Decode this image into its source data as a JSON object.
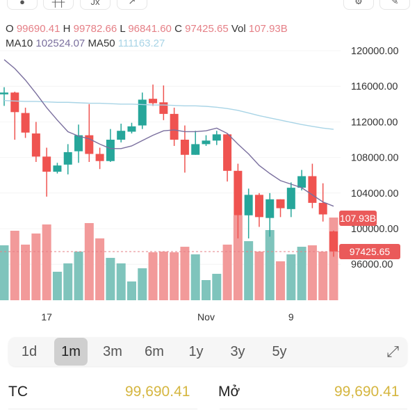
{
  "toolbar": {
    "icons": [
      "shape-icon",
      "indicator-icon",
      "fx-icon",
      "trend-icon",
      "settings-icon",
      "tool-icon"
    ],
    "fx_label": "Jx"
  },
  "ohlc": {
    "o_label": "O",
    "o": "99690.41",
    "h_label": "H",
    "h": "99782.66",
    "l_label": "L",
    "l": "96841.60",
    "c_label": "C",
    "c": "97425.65",
    "vol_label": "Vol",
    "vol": "107.93B"
  },
  "ma": {
    "ma10_label": "MA10",
    "ma10": "102524.07",
    "ma50_label": "MA50",
    "ma50": "111163.27"
  },
  "colors": {
    "up": "#26a69a",
    "down": "#ef5350",
    "vol_up": "#7fc4bc",
    "vol_down": "#f29a9a",
    "ma10": "#7a6f9e",
    "ma50": "#a8d4e6",
    "value": "#d5b640"
  },
  "chart_data": {
    "type": "candlestick",
    "y_axis": {
      "ticks": [
        "120000.00",
        "116000.00",
        "112000.00",
        "108000.00",
        "104000.00",
        "100000.00",
        "96000.00"
      ],
      "tick_values": [
        120000,
        116000,
        112000,
        108000,
        104000,
        100000,
        96000
      ]
    },
    "x_labels": [
      {
        "label": "17",
        "index": 4
      },
      {
        "label": "Nov",
        "index": 19
      },
      {
        "label": "9",
        "index": 27
      }
    ],
    "current_price_label": "97425.65",
    "current_volume_label": "107.93B",
    "current_price": 97425.65,
    "current_volume": 107.93,
    "candles": [
      [
        115100,
        115900,
        113800,
        115300
      ],
      [
        115300,
        115400,
        110000,
        113100
      ],
      [
        113000,
        113600,
        110200,
        110800
      ],
      [
        110700,
        112000,
        107500,
        108100
      ],
      [
        108100,
        109100,
        103600,
        106400
      ],
      [
        106400,
        107400,
        106200,
        107100
      ],
      [
        107200,
        109500,
        106100,
        108600
      ],
      [
        108700,
        111700,
        107400,
        110500
      ],
      [
        110500,
        114000,
        107500,
        108400
      ],
      [
        108400,
        109100,
        106700,
        107600
      ],
      [
        107600,
        111200,
        107500,
        110000
      ],
      [
        110000,
        111800,
        109700,
        111000
      ],
      [
        110900,
        111900,
        110700,
        111500
      ],
      [
        111600,
        115300,
        111200,
        114500
      ],
      [
        114600,
        116200,
        113800,
        114100
      ],
      [
        114200,
        116100,
        112200,
        112900
      ],
      [
        112900,
        113600,
        109300,
        110000
      ],
      [
        110000,
        111600,
        106300,
        108300
      ],
      [
        108300,
        111000,
        108300,
        109500
      ],
      [
        109500,
        110500,
        109300,
        109900
      ],
      [
        109900,
        111000,
        109400,
        110600
      ],
      [
        110600,
        110700,
        105300,
        106500
      ],
      [
        106500,
        107300,
        98900,
        101500
      ],
      [
        101500,
        104500,
        98900,
        103800
      ],
      [
        103800,
        104000,
        100200,
        101300
      ],
      [
        101200,
        104000,
        99100,
        103300
      ],
      [
        103300,
        103300,
        101300,
        102300
      ],
      [
        102200,
        105200,
        101300,
        104600
      ],
      [
        104600,
        106600,
        104300,
        105900
      ],
      [
        105900,
        107300,
        102300,
        102900
      ],
      [
        102900,
        105100,
        100800,
        101600
      ],
      [
        99690.41,
        99782.66,
        96841.6,
        97425.65
      ]
    ],
    "volume_billions": [
      71.7,
      90.7,
      72.6,
      87.1,
      98.9,
      37.2,
      48.1,
      63.5,
      100.7,
      80.7,
      55.3,
      48.1,
      24.5,
      41.7,
      62.6,
      63.5,
      62.6,
      69.8,
      59.9,
      26.3,
      34.5,
      72.6,
      110.7,
      77.1,
      63.5,
      91.6,
      50.8,
      59.9,
      69.8,
      71.7,
      63.5,
      107.93
    ],
    "volume_up": [
      true,
      false,
      false,
      false,
      false,
      true,
      true,
      true,
      false,
      false,
      true,
      true,
      true,
      true,
      false,
      false,
      false,
      false,
      true,
      true,
      true,
      false,
      false,
      true,
      false,
      true,
      false,
      true,
      true,
      false,
      false,
      false
    ],
    "ma10": [
      119000,
      118000,
      116700,
      115200,
      113600,
      112200,
      110900,
      110400,
      110100,
      109500,
      109000,
      109000,
      109300,
      109900,
      110500,
      111000,
      111100,
      110900,
      110900,
      111000,
      111300,
      110700,
      109500,
      108400,
      107100,
      106200,
      105400,
      105000,
      104600,
      103800,
      103000,
      102524.07
    ],
    "ma50": [
      114400,
      114350,
      114300,
      114300,
      114250,
      114200,
      114200,
      114150,
      114100,
      114100,
      114050,
      114000,
      114000,
      113950,
      113900,
      113900,
      113850,
      113800,
      113800,
      113750,
      113650,
      113500,
      113300,
      113000,
      112700,
      112450,
      112200,
      111950,
      111700,
      111500,
      111300,
      111163.27
    ]
  },
  "periods": {
    "items": [
      "1d",
      "1m",
      "3m",
      "6m",
      "1y",
      "3y",
      "5y"
    ],
    "active": "1m"
  },
  "stats": {
    "tc_label": "TC",
    "tc_value": "99,690.41",
    "open_label": "Mở",
    "open_value": "99,690.41"
  }
}
